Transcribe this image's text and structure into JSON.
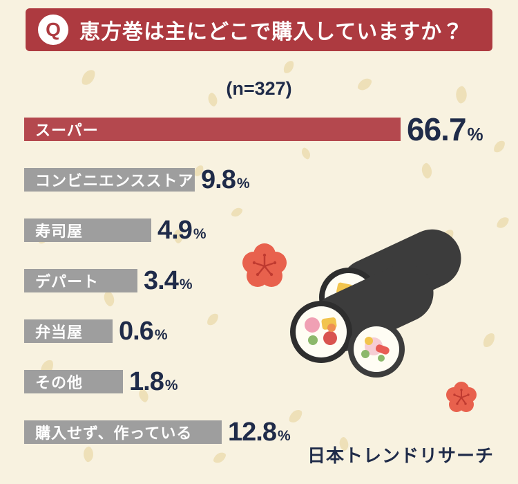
{
  "header": {
    "q_label": "Q",
    "title": "恵方巻は主にどこで購入していますか？"
  },
  "sample_label": "(n=327)",
  "chart_data": {
    "type": "bar",
    "orientation": "horizontal",
    "title": "恵方巻は主にどこで購入していますか？",
    "sample_size_label": "(n=327)",
    "unit": "%",
    "categories": [
      "スーパー",
      "コンビニエンスストア",
      "寿司屋",
      "デパート",
      "弁当屋",
      "その他",
      "購入せず、作っている"
    ],
    "values": [
      66.7,
      9.8,
      4.9,
      3.4,
      0.6,
      1.8,
      12.8
    ],
    "value_labels": [
      "66.7%",
      "9.8%",
      "4.9%",
      "3.4%",
      "0.6%",
      "1.8%",
      "12.8%"
    ],
    "highlight_index": 0,
    "legend": "none",
    "colors": {
      "highlight_bar": "#b4484e",
      "bar": "#9e9e9e",
      "banner": "#ad3a40",
      "value_text": "#1f2b49",
      "label_text": "#ffffff",
      "background": "#f8f2e0"
    }
  },
  "illustration": {
    "description": "ehomaki sushi rolls with plum blossoms"
  },
  "footer": {
    "brand": "日本トレンドリサーチ"
  }
}
